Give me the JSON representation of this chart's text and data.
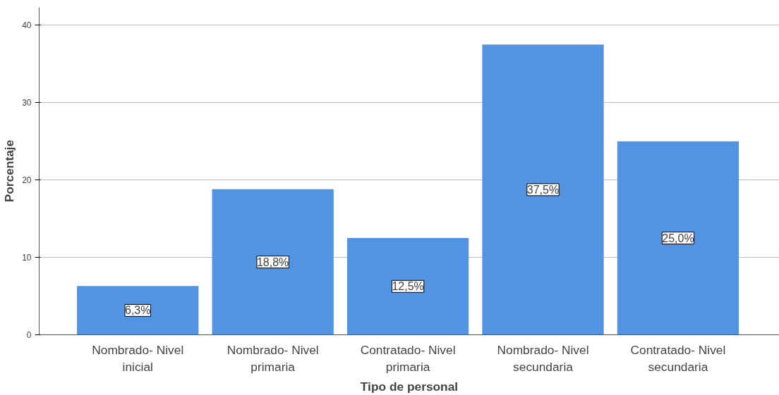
{
  "chart_data": {
    "type": "bar",
    "xlabel": "Tipo de personal",
    "ylabel": "Porcentaje",
    "categories": [
      "Nombrado- Nivel inicial",
      "Nombrado- Nivel primaria",
      "Contratado- Nivel primaria",
      "Nombrado- Nivel secundaria",
      "Contratado- Nivel secundaria"
    ],
    "values": [
      6.3,
      18.8,
      12.5,
      37.5,
      25.0
    ],
    "value_labels": [
      "6,3%",
      "18,8%",
      "12,5%",
      "37,5%",
      "25,0%"
    ],
    "color": "#5294e2",
    "ylim": [
      0,
      42.3
    ],
    "yticks": [
      0,
      10,
      20,
      30,
      40
    ],
    "grid": "y"
  }
}
